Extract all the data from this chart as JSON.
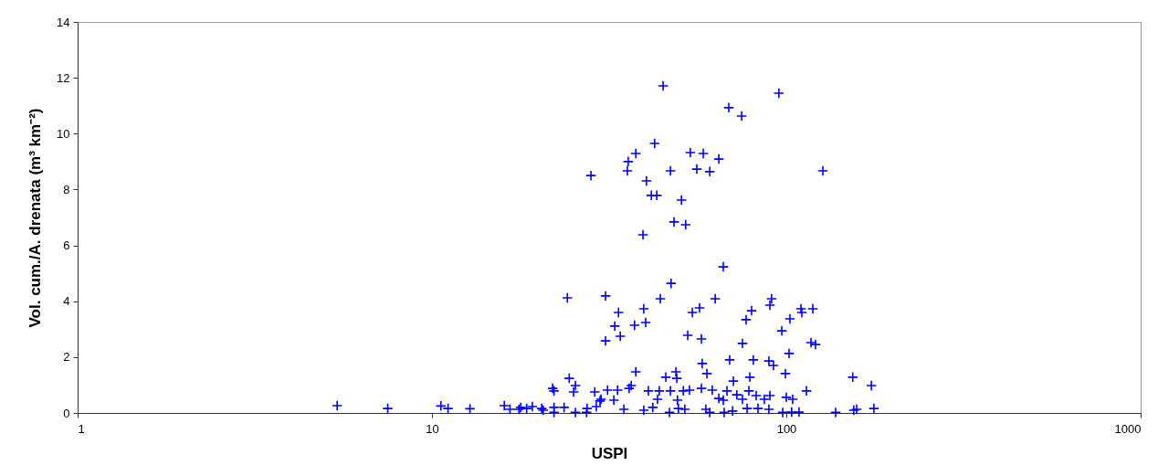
{
  "chart_data": {
    "type": "scatter",
    "xlabel": "USPI",
    "ylabel": "Vol. cum./A. drenata (m³ km⁻²)",
    "log": "x",
    "grid": false,
    "marker": "cross",
    "xlim": [
      1,
      1000
    ],
    "xticks": [
      1,
      10,
      100,
      1000
    ],
    "ylim": [
      0,
      14
    ],
    "yticks": [
      0,
      2,
      4,
      6,
      8,
      10,
      12,
      14
    ],
    "x": [
      5.4,
      7.5,
      10.6,
      11.1,
      12.8,
      16.0,
      16.6,
      17.6,
      17.8,
      18.5,
      19.2,
      20.4,
      20.6,
      22.1,
      22.1,
      21.9,
      22.1,
      23.6,
      24.1,
      24.4,
      25.4,
      25.1,
      25.4,
      27.3,
      27.4,
      28.8,
      29.1,
      29.8,
      30.9,
      30.9,
      31.3,
      47.3,
      44.1,
      63.0,
      90.9,
      89.9,
      33.6,
      39.6,
      54.3,
      56.9,
      79.8,
      77.0,
      110,
      110.6,
      118.8,
      102.4,
      97.1,
      32.8,
      37.3,
      40.1,
      34.0,
      52.7,
      57.6,
      75.2,
      117.4,
      120.9,
      101.8,
      57.9,
      69.2,
      80.7,
      89.3,
      92.0,
      37.6,
      59.7,
      99.4,
      48.8,
      45.7,
      49.1,
      70.9,
      78.9,
      154,
      36.5,
      33.4,
      36.0,
      40.8,
      43.8,
      47.1,
      51.2,
      53.3,
      57.6,
      61.8,
      68.0,
      72.5,
      78.4,
      82.2,
      89.9,
      100,
      104.2,
      114,
      30.0,
      32.6,
      43.3,
      49.3,
      64.5,
      66.4,
      75.2,
      86.7,
      34.8,
      39.6,
      42.0,
      46.8,
      49.6,
      51.7,
      59.3,
      60.8,
      66.8,
      70.5,
      77.5,
      83.2,
      89.3,
      97.7,
      103.5,
      108.6,
      137.8,
      155,
      173.8,
      176.7,
      157.9,
      44.9,
      95.3,
      68.8,
      74.8,
      42.5,
      37.6,
      35.8,
      35.6,
      28.1,
      47.1,
      53.6,
      58.3,
      64.5,
      55.9,
      60.8,
      126.8,
      40.3,
      41.6,
      43.1,
      50.6,
      48.2,
      52.0,
      39.4,
      66.4
    ],
    "series": [
      {
        "color": "#0000ff",
        "values": [
          0.26,
          0.16,
          0.25,
          0.16,
          0.15,
          0.26,
          0.13,
          0.13,
          0.2,
          0.16,
          0.23,
          0.16,
          0.1,
          0.2,
          0.02,
          0.88,
          0.79,
          0.2,
          4.12,
          1.24,
          0.98,
          0.75,
          0.02,
          0.02,
          0.16,
          0.75,
          0.23,
          0.43,
          2.58,
          4.19,
          0.82,
          4.64,
          4.09,
          4.09,
          4.09,
          3.86,
          3.6,
          3.73,
          3.6,
          3.76,
          3.66,
          3.34,
          3.73,
          3.6,
          3.73,
          3.37,
          2.94,
          3.11,
          3.14,
          3.24,
          2.75,
          2.78,
          2.65,
          2.49,
          2.52,
          2.45,
          2.13,
          1.77,
          1.9,
          1.9,
          1.86,
          1.7,
          1.47,
          1.41,
          1.41,
          1.47,
          1.28,
          1.24,
          1.14,
          1.28,
          1.28,
          0.98,
          0.82,
          0.88,
          0.79,
          0.79,
          0.79,
          0.79,
          0.82,
          0.88,
          0.82,
          0.79,
          0.65,
          0.79,
          0.62,
          0.62,
          0.56,
          0.49,
          0.79,
          0.49,
          0.46,
          0.49,
          0.46,
          0.52,
          0.46,
          0.49,
          0.49,
          0.13,
          0.1,
          0.2,
          0.02,
          0.16,
          0.13,
          0.13,
          0.02,
          0.02,
          0.07,
          0.16,
          0.16,
          0.13,
          0.02,
          0.03,
          0.03,
          0.02,
          0.1,
          0.98,
          0.16,
          0.13,
          11.71,
          11.45,
          10.93,
          10.63,
          9.65,
          9.29,
          9.0,
          8.67,
          8.5,
          8.67,
          9.32,
          9.29,
          9.09,
          8.73,
          8.64,
          8.67,
          8.31,
          7.79,
          7.79,
          7.62,
          6.84,
          6.74,
          6.38,
          5.23
        ]
      }
    ]
  }
}
